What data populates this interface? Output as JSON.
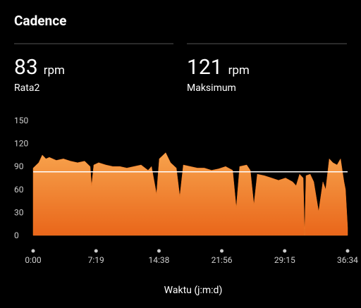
{
  "chart_data": {
    "type": "area",
    "title": "Cadence",
    "xlabel": "Waktu (j:m:d)",
    "summary": [
      {
        "value": 83,
        "unit": "rpm",
        "label": "Rata2"
      },
      {
        "value": 121,
        "unit": "rpm",
        "label": "Maksimum"
      }
    ],
    "x": [
      0,
      39,
      64,
      89,
      113,
      162,
      211,
      261,
      310,
      359,
      398,
      408,
      423,
      457,
      507,
      556,
      605,
      654,
      703,
      753,
      802,
      826,
      861,
      880,
      925,
      959,
      999,
      1023,
      1048,
      1097,
      1146,
      1195,
      1245,
      1294,
      1343,
      1392,
      1417,
      1441,
      1490,
      1515,
      1540,
      1564,
      1613,
      1663,
      1712,
      1761,
      1810,
      1835,
      1859,
      1884,
      1894,
      1904,
      1933,
      1958,
      1992,
      2022,
      2041,
      2066,
      2091,
      2120,
      2145,
      2169,
      2179,
      2194
    ],
    "values": [
      88,
      95,
      105,
      100,
      102,
      98,
      100,
      97,
      95,
      97,
      90,
      65,
      92,
      95,
      92,
      90,
      90,
      88,
      90,
      92,
      85,
      90,
      54,
      100,
      108,
      95,
      88,
      51,
      92,
      90,
      88,
      88,
      85,
      87,
      90,
      85,
      36,
      90,
      92,
      85,
      40,
      80,
      78,
      75,
      72,
      75,
      70,
      65,
      80,
      75,
      0,
      78,
      80,
      70,
      31,
      70,
      60,
      100,
      95,
      92,
      100,
      70,
      60,
      10
    ],
    "color": "#f07a25",
    "xlim": [
      0,
      2194
    ],
    "xticks": [
      {
        "value": 0,
        "label": "0:00"
      },
      {
        "value": 439,
        "label": "7:19"
      },
      {
        "value": 878,
        "label": "14:38"
      },
      {
        "value": 1316,
        "label": "21:56"
      },
      {
        "value": 1755,
        "label": "29:15"
      },
      {
        "value": 2194,
        "label": "36:34"
      }
    ],
    "ylim": [
      0,
      150
    ],
    "yticks": [
      0,
      30,
      60,
      90,
      120,
      150
    ]
  }
}
